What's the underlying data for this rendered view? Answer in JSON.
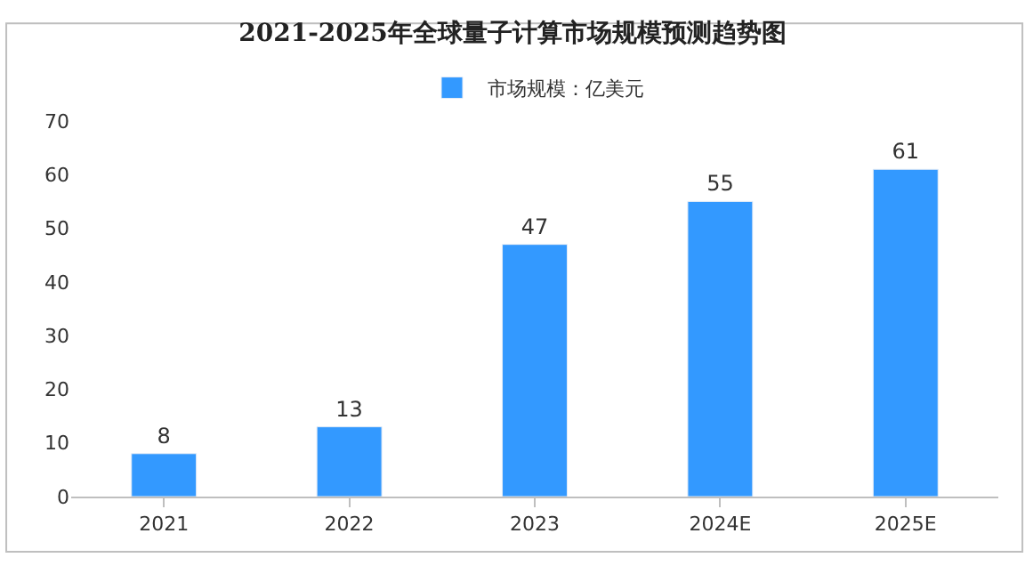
{
  "chart_data": {
    "type": "bar",
    "title": "2021-2025年全球量子计算市场规模预测趋势图",
    "categories": [
      "2021",
      "2022",
      "2023",
      "2024E",
      "2025E"
    ],
    "series": [
      {
        "name": "市场规模：亿美元",
        "color": "#3399ff",
        "values": [
          8,
          13,
          47,
          55,
          61
        ]
      }
    ],
    "ylim": [
      0,
      70
    ],
    "yticks": [
      0,
      10,
      20,
      30,
      40,
      50,
      60,
      70
    ],
    "data_labels": true,
    "legend": "top"
  }
}
